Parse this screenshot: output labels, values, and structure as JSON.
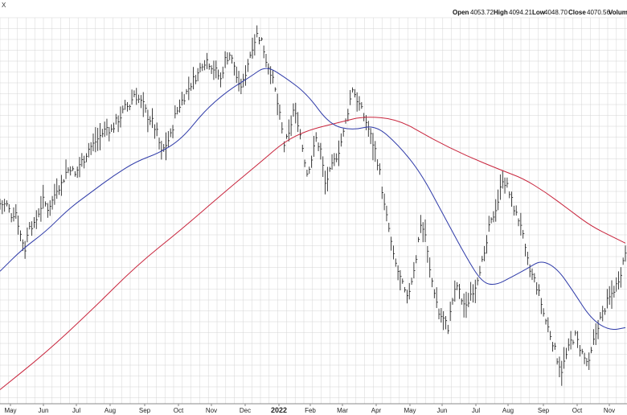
{
  "header": {
    "symbol_fragment": "X",
    "ohlc": [
      {
        "label": "Open",
        "value": "4053.72"
      },
      {
        "label": "High",
        "value": "4094.21"
      },
      {
        "label": "Low",
        "value": "4048.70"
      },
      {
        "label": "Close",
        "value": "4070.56"
      },
      {
        "label": "Volum",
        "value": ""
      }
    ]
  },
  "chart_data": {
    "type": "ohlc-line",
    "grid": true,
    "x_ticks": [
      "May",
      "Jun",
      "Jul",
      "Aug",
      "Sep",
      "Oct",
      "Nov",
      "Dec",
      "2022",
      "Feb",
      "Mar",
      "Apr",
      "May",
      "Jun",
      "Jul",
      "Aug",
      "Sep",
      "Oct",
      "Nov"
    ],
    "year_tick": "2022",
    "y_range": [
      3480,
      4850
    ],
    "colors": {
      "bars": "#2a2a2a",
      "ma_short": "#2e3aa8",
      "ma_long": "#c8243c",
      "grid": "#d4d4d4"
    },
    "price_path": [
      [
        0,
        4190
      ],
      [
        3,
        4185
      ],
      [
        5,
        4150
      ],
      [
        7,
        4160
      ],
      [
        9,
        4080
      ],
      [
        11,
        4030
      ],
      [
        13,
        4120
      ],
      [
        15,
        4110
      ],
      [
        17,
        4160
      ],
      [
        19,
        4200
      ],
      [
        21,
        4175
      ],
      [
        23,
        4200
      ],
      [
        25,
        4245
      ],
      [
        27,
        4260
      ],
      [
        29,
        4300
      ],
      [
        31,
        4320
      ],
      [
        33,
        4290
      ],
      [
        35,
        4330
      ],
      [
        37,
        4350
      ],
      [
        39,
        4385
      ],
      [
        41,
        4400
      ],
      [
        43,
        4420
      ],
      [
        45,
        4440
      ],
      [
        47,
        4460
      ],
      [
        49,
        4450
      ],
      [
        51,
        4480
      ],
      [
        53,
        4500
      ],
      [
        55,
        4530
      ],
      [
        57,
        4540
      ],
      [
        59,
        4580
      ],
      [
        61,
        4560
      ],
      [
        63,
        4540
      ],
      [
        65,
        4500
      ],
      [
        67,
        4480
      ],
      [
        69,
        4440
      ],
      [
        71,
        4370
      ],
      [
        73,
        4400
      ],
      [
        75,
        4430
      ],
      [
        77,
        4500
      ],
      [
        79,
        4540
      ],
      [
        81,
        4570
      ],
      [
        83,
        4600
      ],
      [
        85,
        4630
      ],
      [
        87,
        4650
      ],
      [
        89,
        4690
      ],
      [
        91,
        4700
      ],
      [
        93,
        4680
      ],
      [
        95,
        4660
      ],
      [
        97,
        4630
      ],
      [
        99,
        4700
      ],
      [
        101,
        4720
      ],
      [
        103,
        4680
      ],
      [
        105,
        4600
      ],
      [
        107,
        4620
      ],
      [
        109,
        4690
      ],
      [
        111,
        4750
      ],
      [
        113,
        4790
      ],
      [
        115,
        4770
      ],
      [
        117,
        4700
      ],
      [
        119,
        4660
      ],
      [
        121,
        4590
      ],
      [
        123,
        4500
      ],
      [
        125,
        4400
      ],
      [
        127,
        4430
      ],
      [
        129,
        4520
      ],
      [
        131,
        4480
      ],
      [
        133,
        4390
      ],
      [
        135,
        4300
      ],
      [
        137,
        4350
      ],
      [
        139,
        4420
      ],
      [
        141,
        4380
      ],
      [
        143,
        4260
      ],
      [
        145,
        4300
      ],
      [
        147,
        4340
      ],
      [
        149,
        4380
      ],
      [
        151,
        4440
      ],
      [
        153,
        4520
      ],
      [
        155,
        4600
      ],
      [
        157,
        4560
      ],
      [
        159,
        4520
      ],
      [
        161,
        4480
      ],
      [
        163,
        4430
      ],
      [
        165,
        4380
      ],
      [
        167,
        4300
      ],
      [
        169,
        4180
      ],
      [
        171,
        4100
      ],
      [
        173,
        4000
      ],
      [
        175,
        3950
      ],
      [
        177,
        3900
      ],
      [
        179,
        3850
      ],
      [
        181,
        3920
      ],
      [
        183,
        4000
      ],
      [
        185,
        4120
      ],
      [
        187,
        4080
      ],
      [
        189,
        3950
      ],
      [
        191,
        3880
      ],
      [
        193,
        3800
      ],
      [
        195,
        3780
      ],
      [
        197,
        3750
      ],
      [
        199,
        3850
      ],
      [
        201,
        3900
      ],
      [
        203,
        3850
      ],
      [
        205,
        3820
      ],
      [
        207,
        3870
      ],
      [
        209,
        3900
      ],
      [
        211,
        3960
      ],
      [
        213,
        4000
      ],
      [
        215,
        4100
      ],
      [
        217,
        4150
      ],
      [
        219,
        4200
      ],
      [
        221,
        4280
      ],
      [
        223,
        4250
      ],
      [
        225,
        4200
      ],
      [
        227,
        4150
      ],
      [
        229,
        4120
      ],
      [
        231,
        4020
      ],
      [
        233,
        3950
      ],
      [
        235,
        3920
      ],
      [
        237,
        3870
      ],
      [
        239,
        3800
      ],
      [
        241,
        3750
      ],
      [
        243,
        3700
      ],
      [
        245,
        3640
      ],
      [
        247,
        3600
      ],
      [
        249,
        3650
      ],
      [
        251,
        3700
      ],
      [
        253,
        3720
      ],
      [
        255,
        3680
      ],
      [
        257,
        3640
      ],
      [
        259,
        3620
      ],
      [
        261,
        3700
      ],
      [
        263,
        3760
      ],
      [
        265,
        3800
      ],
      [
        267,
        3840
      ],
      [
        269,
        3870
      ],
      [
        271,
        3900
      ],
      [
        273,
        3950
      ],
      [
        275,
        4020
      ]
    ],
    "ma_short": [
      [
        0,
        3950
      ],
      [
        10,
        4030
      ],
      [
        20,
        4090
      ],
      [
        30,
        4170
      ],
      [
        40,
        4230
      ],
      [
        50,
        4290
      ],
      [
        60,
        4340
      ],
      [
        70,
        4370
      ],
      [
        80,
        4420
      ],
      [
        90,
        4520
      ],
      [
        100,
        4590
      ],
      [
        110,
        4640
      ],
      [
        117,
        4680
      ],
      [
        125,
        4640
      ],
      [
        135,
        4580
      ],
      [
        145,
        4470
      ],
      [
        155,
        4450
      ],
      [
        165,
        4470
      ],
      [
        175,
        4400
      ],
      [
        185,
        4300
      ],
      [
        195,
        4150
      ],
      [
        205,
        4000
      ],
      [
        212,
        3910
      ],
      [
        218,
        3900
      ],
      [
        225,
        3930
      ],
      [
        232,
        3960
      ],
      [
        238,
        3990
      ],
      [
        245,
        3960
      ],
      [
        252,
        3880
      ],
      [
        260,
        3780
      ],
      [
        268,
        3740
      ],
      [
        275,
        3750
      ]
    ],
    "ma_long": [
      [
        0,
        3530
      ],
      [
        20,
        3660
      ],
      [
        40,
        3810
      ],
      [
        60,
        3970
      ],
      [
        80,
        4100
      ],
      [
        100,
        4240
      ],
      [
        115,
        4340
      ],
      [
        125,
        4410
      ],
      [
        135,
        4450
      ],
      [
        150,
        4480
      ],
      [
        160,
        4500
      ],
      [
        175,
        4490
      ],
      [
        190,
        4420
      ],
      [
        205,
        4360
      ],
      [
        220,
        4310
      ],
      [
        230,
        4280
      ],
      [
        240,
        4230
      ],
      [
        250,
        4170
      ],
      [
        260,
        4110
      ],
      [
        270,
        4070
      ],
      [
        275,
        4050
      ]
    ]
  }
}
